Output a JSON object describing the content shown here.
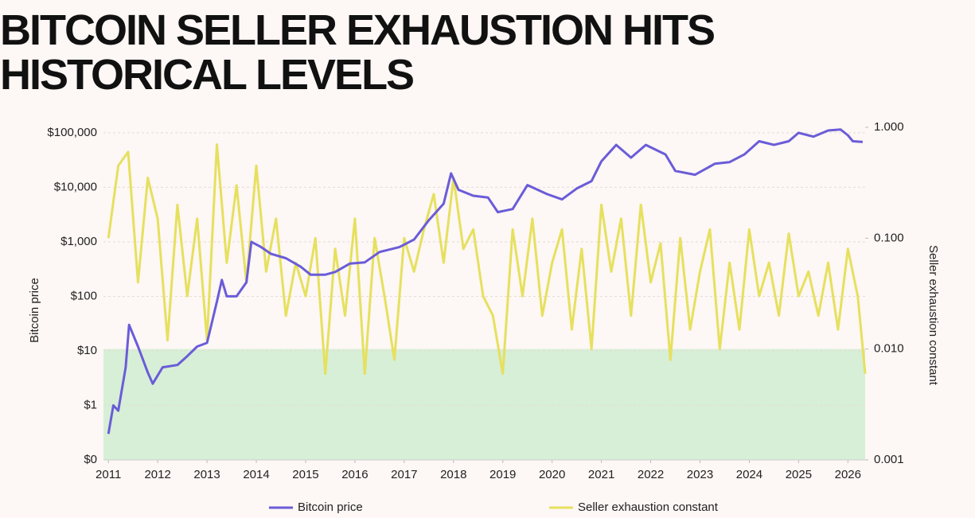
{
  "chart_data": {
    "type": "line",
    "title": "BITCOIN SELLER EXHAUSTION HITS HISTORICAL LEVELS",
    "ylabel": "Bitcoin price",
    "y2label": "Seller exhaustion constant",
    "log_scale": true,
    "grid": true,
    "xlim": [
      2010.9,
      2026.35
    ],
    "xticks": [
      2011,
      2012,
      2013,
      2014,
      2015,
      2016,
      2017,
      2018,
      2019,
      2020,
      2021,
      2022,
      2023,
      2024,
      2025,
      2026
    ],
    "ylim": [
      0.1,
      126000
    ],
    "yticks": [
      {
        "value": 0.1,
        "label": "$0"
      },
      {
        "value": 1,
        "label": "$1"
      },
      {
        "value": 10,
        "label": "$10"
      },
      {
        "value": 100,
        "label": "$100"
      },
      {
        "value": 1000,
        "label": "$1,000"
      },
      {
        "value": 10000,
        "label": "$10,000"
      },
      {
        "value": 100000,
        "label": "$100,000"
      }
    ],
    "y2lim": [
      0.001,
      1
    ],
    "y2ticks": [
      {
        "value": 0.001,
        "label": "0.001"
      },
      {
        "value": 0.01,
        "label": "0.010"
      },
      {
        "value": 0.1,
        "label": "0.100"
      },
      {
        "value": 1,
        "label": "1.000"
      }
    ],
    "shaded_band": {
      "axis": "y2",
      "range": [
        0.001,
        0.01
      ],
      "color": "#d6efd6"
    },
    "series": [
      {
        "name": "Bitcoin price",
        "color": "#6a5cd8",
        "x": [
          2011.0,
          2011.1,
          2011.2,
          2011.35,
          2011.42,
          2011.6,
          2011.8,
          2011.9,
          2012.1,
          2012.4,
          2012.6,
          2012.8,
          2013.0,
          2013.2,
          2013.3,
          2013.4,
          2013.6,
          2013.8,
          2013.9,
          2014.1,
          2014.3,
          2014.6,
          2014.9,
          2015.1,
          2015.4,
          2015.6,
          2015.9,
          2016.2,
          2016.5,
          2016.9,
          2017.2,
          2017.5,
          2017.8,
          2017.95,
          2018.1,
          2018.4,
          2018.7,
          2018.9,
          2019.2,
          2019.5,
          2019.9,
          2020.2,
          2020.5,
          2020.8,
          2021.0,
          2021.3,
          2021.6,
          2021.9,
          2022.3,
          2022.5,
          2022.9,
          2023.3,
          2023.6,
          2023.9,
          2024.2,
          2024.5,
          2024.8,
          2025.0,
          2025.3,
          2025.6,
          2025.85,
          2026.0,
          2026.1,
          2026.3
        ],
        "values": [
          0.3,
          1,
          0.8,
          5,
          30,
          12,
          4,
          2.5,
          5,
          5.5,
          8,
          12,
          14,
          80,
          200,
          100,
          100,
          180,
          1000,
          800,
          600,
          500,
          350,
          250,
          250,
          280,
          400,
          420,
          650,
          800,
          1100,
          2500,
          5000,
          18000,
          9000,
          7000,
          6500,
          3500,
          4000,
          11000,
          7500,
          6000,
          9500,
          13000,
          30000,
          60000,
          35000,
          60000,
          40000,
          20000,
          17000,
          27000,
          29000,
          40000,
          70000,
          60000,
          70000,
          100000,
          85000,
          110000,
          115000,
          90000,
          70000,
          68000
        ]
      },
      {
        "name": "Seller exhaustion constant",
        "color": "#e6e05f",
        "axis": "y2",
        "x": [
          2011.0,
          2011.2,
          2011.4,
          2011.6,
          2011.8,
          2012.0,
          2012.2,
          2012.4,
          2012.6,
          2012.8,
          2013.0,
          2013.2,
          2013.4,
          2013.6,
          2013.8,
          2014.0,
          2014.2,
          2014.4,
          2014.6,
          2014.8,
          2015.0,
          2015.2,
          2015.4,
          2015.6,
          2015.8,
          2016.0,
          2016.2,
          2016.4,
          2016.6,
          2016.8,
          2017.0,
          2017.2,
          2017.4,
          2017.6,
          2017.8,
          2018.0,
          2018.2,
          2018.4,
          2018.6,
          2018.8,
          2019.0,
          2019.2,
          2019.4,
          2019.6,
          2019.8,
          2020.0,
          2020.2,
          2020.4,
          2020.6,
          2020.8,
          2021.0,
          2021.2,
          2021.4,
          2021.6,
          2021.8,
          2022.0,
          2022.2,
          2022.4,
          2022.6,
          2022.8,
          2023.0,
          2023.2,
          2023.4,
          2023.6,
          2023.8,
          2024.0,
          2024.2,
          2024.4,
          2024.6,
          2024.8,
          2025.0,
          2025.2,
          2025.4,
          2025.6,
          2025.8,
          2026.0,
          2026.2,
          2026.35
        ],
        "values": [
          0.1,
          0.45,
          0.6,
          0.04,
          0.35,
          0.15,
          0.012,
          0.2,
          0.03,
          0.15,
          0.012,
          0.7,
          0.06,
          0.3,
          0.04,
          0.45,
          0.05,
          0.15,
          0.02,
          0.06,
          0.03,
          0.1,
          0.006,
          0.08,
          0.02,
          0.15,
          0.006,
          0.1,
          0.03,
          0.008,
          0.1,
          0.05,
          0.12,
          0.25,
          0.06,
          0.35,
          0.08,
          0.12,
          0.03,
          0.02,
          0.006,
          0.12,
          0.03,
          0.15,
          0.02,
          0.06,
          0.12,
          0.015,
          0.08,
          0.01,
          0.2,
          0.05,
          0.15,
          0.02,
          0.2,
          0.04,
          0.09,
          0.008,
          0.1,
          0.015,
          0.05,
          0.12,
          0.01,
          0.06,
          0.015,
          0.12,
          0.03,
          0.06,
          0.02,
          0.11,
          0.03,
          0.05,
          0.02,
          0.06,
          0.015,
          0.08,
          0.03,
          0.006
        ]
      }
    ]
  }
}
